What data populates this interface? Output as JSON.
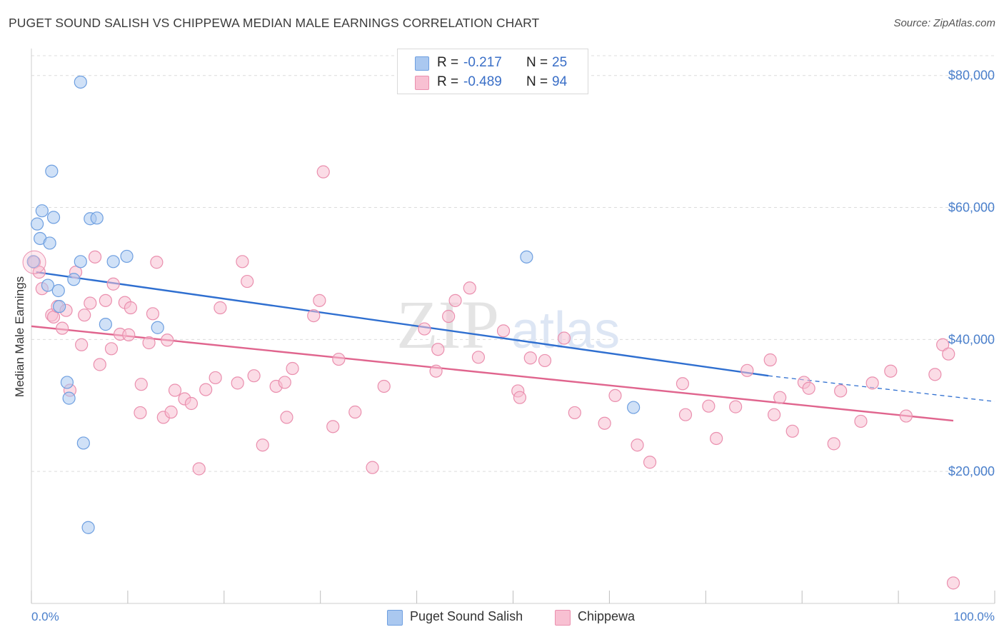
{
  "title": "PUGET SOUND SALISH VS CHIPPEWA MEDIAN MALE EARNINGS CORRELATION CHART",
  "source": "Source: ZipAtlas.com",
  "watermark": {
    "zip": "ZIP",
    "atlas": "atlas"
  },
  "legend_top": [
    {
      "r_label": "R =",
      "r_value": "-0.217",
      "n_label": "N =",
      "n_value": "25",
      "color": "#aac8f0",
      "border": "#6e9fe0"
    },
    {
      "r_label": "R =",
      "r_value": "-0.489",
      "n_label": "N =",
      "n_value": "94",
      "color": "#f8c0d2",
      "border": "#ea8fae"
    }
  ],
  "legend_bottom": [
    {
      "label": "Puget Sound Salish",
      "color": "#aac8f0",
      "border": "#6e9fe0"
    },
    {
      "label": "Chippewa",
      "color": "#f8c0d2",
      "border": "#ea8fae"
    }
  ],
  "chart_data": {
    "type": "scatter",
    "title": "PUGET SOUND SALISH VS CHIPPEWA MEDIAN MALE EARNINGS CORRELATION CHART",
    "xlabel": "",
    "ylabel": "Median Male Earnings",
    "xlim": [
      0,
      100
    ],
    "ylim": [
      0,
      83000
    ],
    "x_tick_labels": [
      "0.0%",
      "100.0%"
    ],
    "y_ticks": [
      20000,
      40000,
      60000,
      80000
    ],
    "y_tick_labels": [
      "$20,000",
      "$40,000",
      "$60,000",
      "$80,000"
    ],
    "grid": true,
    "legend_position": "top-center",
    "series": [
      {
        "name": "Puget Sound Salish",
        "color": "#6e9fe0",
        "fill": "#aac8f0",
        "line_color": "#2f6fd0",
        "trend": {
          "x_start": 0.5,
          "y_start": 50200,
          "x_end": 76.5,
          "y_end": 34500,
          "dash_to_x": 100,
          "dash_to_y": 30600
        },
        "points": [
          [
            5.1,
            79000
          ],
          [
            2.1,
            65500
          ],
          [
            1.1,
            59500
          ],
          [
            0.6,
            57500
          ],
          [
            2.3,
            58500
          ],
          [
            6.1,
            58300
          ],
          [
            6.8,
            58400
          ],
          [
            0.9,
            55300
          ],
          [
            1.9,
            54600
          ],
          [
            5.1,
            51800
          ],
          [
            8.5,
            51800
          ],
          [
            9.9,
            52600
          ],
          [
            51.4,
            52500
          ],
          [
            0.2,
            51800
          ],
          [
            4.4,
            49100
          ],
          [
            1.7,
            48200
          ],
          [
            2.8,
            47400
          ],
          [
            2.9,
            45000
          ],
          [
            7.7,
            42300
          ],
          [
            13.1,
            41800
          ],
          [
            3.7,
            33500
          ],
          [
            3.9,
            31100
          ],
          [
            62.5,
            29700
          ],
          [
            5.4,
            24300
          ],
          [
            5.9,
            11500
          ]
        ]
      },
      {
        "name": "Chippewa",
        "color": "#ea8fae",
        "fill": "#f8c0d2",
        "line_color": "#e0658e",
        "trend": {
          "x_start": 0,
          "y_start": 42000,
          "x_end": 95.7,
          "y_end": 27700
        },
        "points": [
          [
            0.3,
            51700
          ],
          [
            0.8,
            50200
          ],
          [
            1.1,
            47700
          ],
          [
            2.1,
            43700
          ],
          [
            2.3,
            43400
          ],
          [
            2.7,
            45000
          ],
          [
            3.2,
            41700
          ],
          [
            3.6,
            44400
          ],
          [
            4.0,
            32300
          ],
          [
            4.6,
            50200
          ],
          [
            5.2,
            39200
          ],
          [
            5.5,
            43700
          ],
          [
            6.1,
            45500
          ],
          [
            6.6,
            52500
          ],
          [
            7.1,
            36200
          ],
          [
            7.7,
            45900
          ],
          [
            8.3,
            38600
          ],
          [
            8.5,
            48400
          ],
          [
            9.2,
            40800
          ],
          [
            9.7,
            45600
          ],
          [
            10.1,
            40700
          ],
          [
            10.3,
            44800
          ],
          [
            11.3,
            28900
          ],
          [
            11.4,
            33200
          ],
          [
            12.2,
            39500
          ],
          [
            12.6,
            43900
          ],
          [
            13.0,
            51700
          ],
          [
            13.7,
            28200
          ],
          [
            14.1,
            39900
          ],
          [
            14.5,
            29000
          ],
          [
            14.9,
            32300
          ],
          [
            15.9,
            31000
          ],
          [
            16.6,
            30300
          ],
          [
            17.4,
            20400
          ],
          [
            18.1,
            32400
          ],
          [
            19.1,
            34200
          ],
          [
            19.6,
            44800
          ],
          [
            21.4,
            33400
          ],
          [
            21.9,
            51800
          ],
          [
            22.4,
            48800
          ],
          [
            23.1,
            34500
          ],
          [
            24.0,
            24000
          ],
          [
            25.4,
            32900
          ],
          [
            26.3,
            33500
          ],
          [
            26.5,
            28200
          ],
          [
            27.1,
            35600
          ],
          [
            29.3,
            43600
          ],
          [
            29.9,
            45900
          ],
          [
            30.3,
            65400
          ],
          [
            31.3,
            26800
          ],
          [
            31.9,
            37000
          ],
          [
            33.6,
            29000
          ],
          [
            35.4,
            20600
          ],
          [
            36.6,
            32900
          ],
          [
            40.8,
            41600
          ],
          [
            42.0,
            35200
          ],
          [
            42.2,
            38500
          ],
          [
            43.3,
            43500
          ],
          [
            44.0,
            45900
          ],
          [
            45.5,
            47800
          ],
          [
            46.4,
            37300
          ],
          [
            49.0,
            41300
          ],
          [
            50.5,
            32200
          ],
          [
            50.7,
            31200
          ],
          [
            51.8,
            37200
          ],
          [
            53.3,
            36800
          ],
          [
            55.3,
            40200
          ],
          [
            56.4,
            28900
          ],
          [
            59.5,
            27300
          ],
          [
            60.6,
            31500
          ],
          [
            62.9,
            24000
          ],
          [
            64.2,
            21400
          ],
          [
            67.6,
            33300
          ],
          [
            67.9,
            28600
          ],
          [
            70.3,
            29900
          ],
          [
            71.1,
            25000
          ],
          [
            73.1,
            29800
          ],
          [
            74.3,
            35300
          ],
          [
            76.7,
            36900
          ],
          [
            77.1,
            28600
          ],
          [
            77.7,
            31200
          ],
          [
            79.0,
            26100
          ],
          [
            80.2,
            33500
          ],
          [
            80.7,
            32600
          ],
          [
            83.3,
            24200
          ],
          [
            84.0,
            32200
          ],
          [
            86.1,
            27600
          ],
          [
            87.3,
            33400
          ],
          [
            89.2,
            35200
          ],
          [
            90.8,
            28400
          ],
          [
            93.8,
            34700
          ],
          [
            94.6,
            39200
          ],
          [
            95.2,
            37800
          ],
          [
            95.7,
            3100
          ]
        ]
      }
    ]
  }
}
